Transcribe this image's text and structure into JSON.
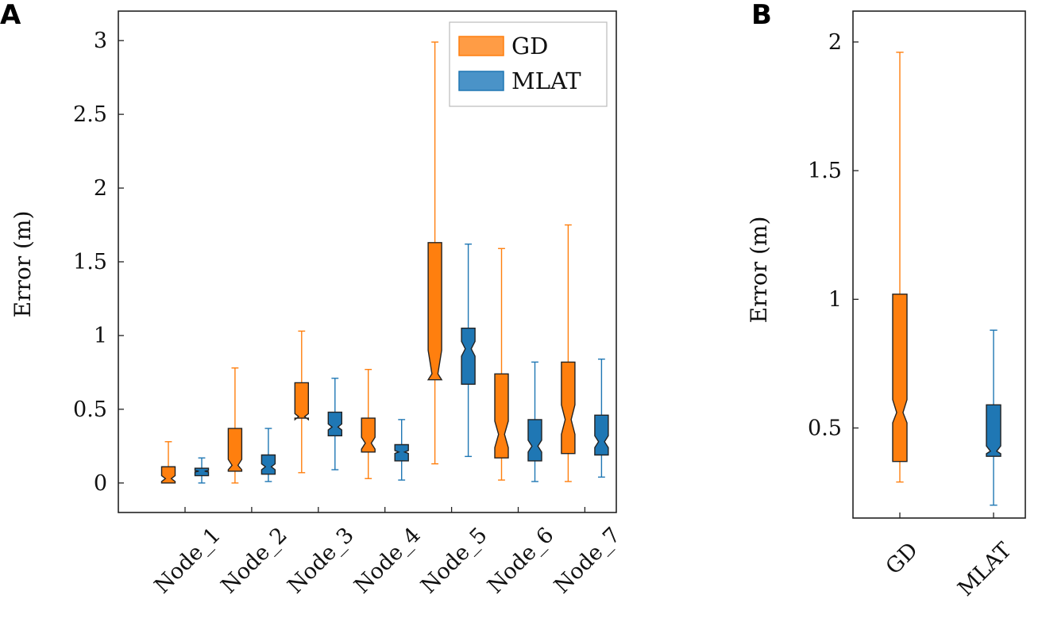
{
  "colors": {
    "gd_fill": "#ff7f0e",
    "gd_line": "#ff7f0e",
    "mlat_fill": "#1f77b4",
    "mlat_line": "#1f77b4",
    "box_edge": "#222222",
    "legend_gd_fill": "#ff9c45",
    "legend_mlat_fill": "#4a93c8"
  },
  "panels": {
    "a_label": "A",
    "b_label": "B"
  },
  "chart_data": [
    {
      "type": "boxplot",
      "panel": "A",
      "notched": true,
      "xlabel": "",
      "ylabel": "Error (m)",
      "ylim": [
        -0.2,
        3.2
      ],
      "yticks": [
        0,
        0.5,
        1,
        1.5,
        2,
        2.5,
        3
      ],
      "ytick_labels": [
        "0",
        "0.5",
        "1",
        "1.5",
        "2",
        "2.5",
        "3"
      ],
      "categories": [
        "Node_1",
        "Node_2",
        "Node_3",
        "Node_4",
        "Node_5",
        "Node_6",
        "Node_7"
      ],
      "legend": {
        "position": "top-right",
        "entries": [
          "GD",
          "MLAT"
        ]
      },
      "series": [
        {
          "name": "GD",
          "boxes": [
            {
              "whislo": 0.0,
              "q1": 0.0,
              "med": 0.03,
              "q3": 0.11,
              "whishi": 0.28,
              "notch_lo": 0.01,
              "notch_hi": 0.05
            },
            {
              "whislo": 0.0,
              "q1": 0.08,
              "med": 0.12,
              "q3": 0.37,
              "whishi": 0.78,
              "notch_lo": 0.09,
              "notch_hi": 0.16
            },
            {
              "whislo": 0.07,
              "q1": 0.44,
              "med": 0.45,
              "q3": 0.68,
              "whishi": 1.03,
              "notch_lo": 0.43,
              "notch_hi": 0.47
            },
            {
              "whislo": 0.03,
              "q1": 0.21,
              "med": 0.27,
              "q3": 0.44,
              "whishi": 0.77,
              "notch_lo": 0.23,
              "notch_hi": 0.31
            },
            {
              "whislo": 0.13,
              "q1": 0.7,
              "med": 0.74,
              "q3": 1.63,
              "whishi": 2.99,
              "notch_lo": 0.7,
              "notch_hi": 0.9
            },
            {
              "whislo": 0.02,
              "q1": 0.17,
              "med": 0.33,
              "q3": 0.74,
              "whishi": 1.59,
              "notch_lo": 0.24,
              "notch_hi": 0.42
            },
            {
              "whislo": 0.01,
              "q1": 0.2,
              "med": 0.43,
              "q3": 0.82,
              "whishi": 1.75,
              "notch_lo": 0.33,
              "notch_hi": 0.53
            }
          ]
        },
        {
          "name": "MLAT",
          "boxes": [
            {
              "whislo": 0.0,
              "q1": 0.05,
              "med": 0.08,
              "q3": 0.1,
              "whishi": 0.17,
              "notch_lo": 0.075,
              "notch_hi": 0.085
            },
            {
              "whislo": 0.01,
              "q1": 0.06,
              "med": 0.11,
              "q3": 0.19,
              "whishi": 0.37,
              "notch_lo": 0.09,
              "notch_hi": 0.13
            },
            {
              "whislo": 0.09,
              "q1": 0.32,
              "med": 0.38,
              "q3": 0.48,
              "whishi": 0.71,
              "notch_lo": 0.36,
              "notch_hi": 0.4
            },
            {
              "whislo": 0.02,
              "q1": 0.15,
              "med": 0.21,
              "q3": 0.26,
              "whishi": 0.43,
              "notch_lo": 0.2,
              "notch_hi": 0.22
            },
            {
              "whislo": 0.18,
              "q1": 0.67,
              "med": 0.91,
              "q3": 1.05,
              "whishi": 1.62,
              "notch_lo": 0.86,
              "notch_hi": 0.96
            },
            {
              "whislo": 0.01,
              "q1": 0.15,
              "med": 0.25,
              "q3": 0.43,
              "whishi": 0.82,
              "notch_lo": 0.21,
              "notch_hi": 0.29
            },
            {
              "whislo": 0.04,
              "q1": 0.19,
              "med": 0.28,
              "q3": 0.46,
              "whishi": 0.84,
              "notch_lo": 0.24,
              "notch_hi": 0.32
            }
          ]
        }
      ]
    },
    {
      "type": "boxplot",
      "panel": "B",
      "notched": true,
      "xlabel": "",
      "ylabel": "Error (m)",
      "ylim": [
        0.15,
        2.12
      ],
      "yticks": [
        0.5,
        1,
        1.5,
        2
      ],
      "ytick_labels": [
        "0.5",
        "1",
        "1.5",
        "2"
      ],
      "categories": [
        "GD",
        "MLAT"
      ],
      "boxes": [
        {
          "name": "GD",
          "whislo": 0.29,
          "q1": 0.37,
          "med": 0.56,
          "q3": 1.02,
          "whishi": 1.96,
          "notch_lo": 0.52,
          "notch_hi": 0.61
        },
        {
          "name": "MLAT",
          "whislo": 0.2,
          "q1": 0.39,
          "med": 0.41,
          "q3": 0.59,
          "whishi": 0.88,
          "notch_lo": 0.4,
          "notch_hi": 0.43
        }
      ]
    }
  ]
}
